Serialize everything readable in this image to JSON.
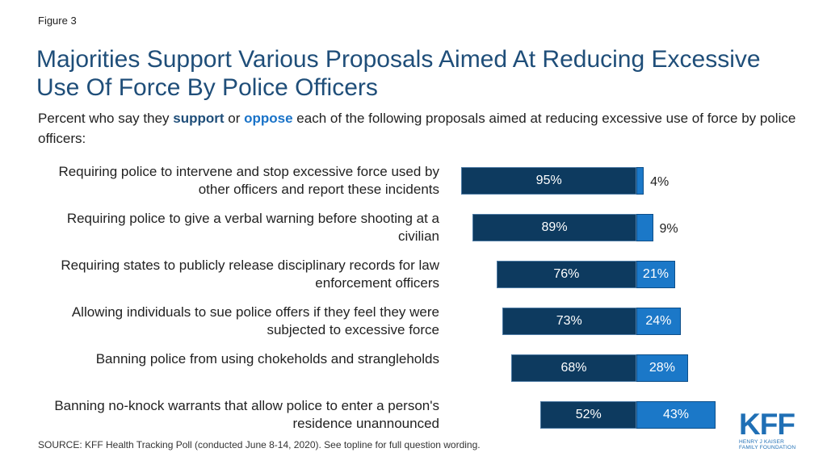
{
  "figure_label": "Figure 3",
  "title": "Majorities Support Various Proposals Aimed At Reducing Excessive Use Of Force By Police Officers",
  "subtitle": {
    "prefix": "Percent who say they ",
    "support_word": "support",
    "middle": " or ",
    "oppose_word": "oppose",
    "suffix": " each of the following proposals aimed at reducing excessive use of force by police officers:"
  },
  "source": "SOURCE: KFF Health Tracking Poll (conducted June 8-14, 2020). See topline for full question wording.",
  "logo": {
    "mark": "KFF",
    "line1": "HENRY J KAISER",
    "line2": "FAMILY FOUNDATION"
  },
  "colors": {
    "support": "#0d3a5f",
    "oppose": "#1b78c8",
    "title": "#1f4e79"
  },
  "chart_data": {
    "type": "bar",
    "orientation": "horizontal-diverging",
    "title": "",
    "categories": [
      "Requiring police to intervene and stop excessive force used by other officers and report these incidents",
      "Requiring police to give a verbal warning before shooting at a civilian",
      "Requiring states to publicly release disciplinary records for law enforcement officers",
      "Allowing individuals to sue police offers if they feel they were subjected to excessive force",
      "Banning police from using chokeholds and strangleholds",
      "Banning no-knock warrants that allow police to enter a person's residence unannounced"
    ],
    "series": [
      {
        "name": "support",
        "values": [
          95,
          89,
          76,
          73,
          68,
          52
        ],
        "labels": [
          "95%",
          "89%",
          "76%",
          "73%",
          "68%",
          "52%"
        ]
      },
      {
        "name": "oppose",
        "values": [
          4,
          9,
          21,
          24,
          28,
          43
        ],
        "labels": [
          "4%",
          "9%",
          "21%",
          "24%",
          "28%",
          "43%"
        ]
      }
    ],
    "xlabel": "",
    "ylabel": "",
    "grid": false
  }
}
